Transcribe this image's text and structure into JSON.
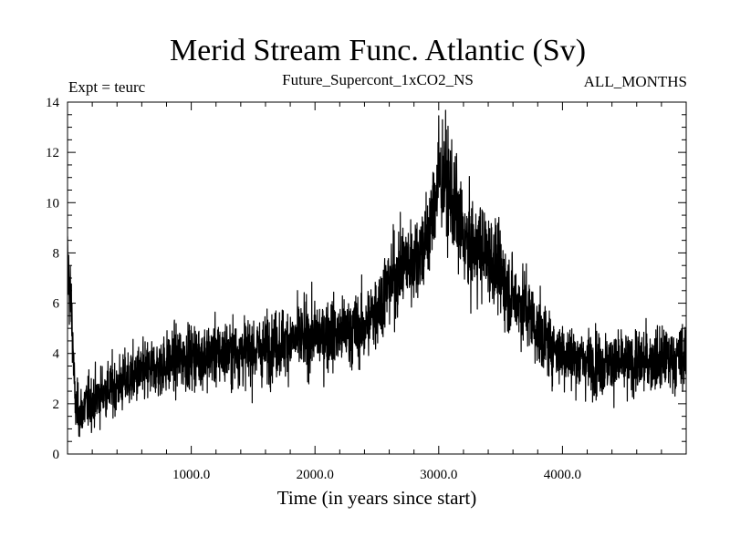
{
  "chart_data": {
    "type": "line",
    "title": "Merid Stream Func. Atlantic (Sv)",
    "subtitle": "Future_Supercont_1xCO2_NS",
    "left_annotation": "Expt = teurc",
    "right_annotation": "ALL_MONTHS",
    "xlabel": "Time (in years since start)",
    "ylabel": "",
    "xlim": [
      0,
      5000
    ],
    "ylim": [
      0,
      14
    ],
    "x_ticks": [
      {
        "value": 1000,
        "label": "1000.0"
      },
      {
        "value": 2000,
        "label": "2000.0"
      },
      {
        "value": 3000,
        "label": "3000.0"
      },
      {
        "value": 4000,
        "label": "4000.0"
      }
    ],
    "y_ticks": [
      {
        "value": 0,
        "label": "0"
      },
      {
        "value": 2,
        "label": "2"
      },
      {
        "value": 4,
        "label": "4"
      },
      {
        "value": 6,
        "label": "6"
      },
      {
        "value": 8,
        "label": "8"
      },
      {
        "value": 10,
        "label": "10"
      },
      {
        "value": 12,
        "label": "12"
      },
      {
        "value": 14,
        "label": "14"
      }
    ],
    "line_color": "#000000",
    "grid": false,
    "series": [
      {
        "x": [
          0,
          20,
          40,
          60,
          100,
          150,
          200,
          300,
          400,
          500,
          600,
          700,
          800,
          900,
          1000,
          1100,
          1200,
          1300,
          1400,
          1500,
          1600,
          1700,
          1800,
          1900,
          2000,
          2100,
          2200,
          2300,
          2400,
          2500,
          2550,
          2600,
          2650,
          2700,
          2750,
          2800,
          2850,
          2900,
          2950,
          3000,
          3050,
          3100,
          3150,
          3200,
          3250,
          3300,
          3350,
          3400,
          3450,
          3500,
          3550,
          3600,
          3650,
          3700,
          3750,
          3800,
          3850,
          3900,
          3950,
          4000,
          4100,
          4200,
          4300,
          4400,
          4500,
          4600,
          4700,
          4800,
          4900,
          5000
        ],
        "values": [
          7.5,
          6.5,
          5.0,
          2.0,
          1.6,
          2.0,
          2.1,
          2.5,
          2.7,
          3.0,
          3.2,
          3.4,
          3.6,
          3.8,
          3.9,
          3.9,
          4.0,
          4.0,
          4.1,
          4.1,
          4.2,
          4.4,
          4.5,
          4.6,
          4.7,
          4.8,
          4.8,
          4.9,
          5.0,
          5.8,
          6.3,
          6.8,
          7.1,
          7.4,
          7.6,
          7.8,
          8.1,
          8.4,
          9.5,
          11.0,
          11.0,
          10.2,
          9.4,
          8.6,
          8.1,
          8.2,
          8.1,
          7.9,
          7.6,
          7.1,
          6.6,
          6.2,
          6.0,
          5.9,
          5.4,
          4.8,
          4.6,
          4.4,
          4.2,
          4.0,
          3.8,
          3.7,
          3.6,
          3.6,
          3.6,
          3.6,
          3.7,
          3.7,
          3.8,
          3.9
        ]
      }
    ]
  }
}
